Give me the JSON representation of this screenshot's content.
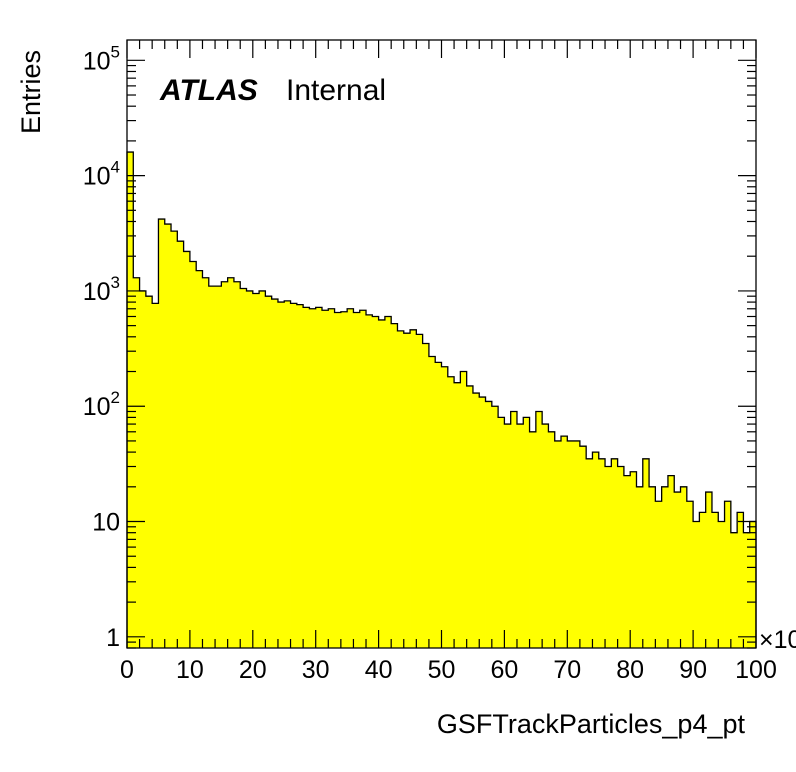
{
  "chart_data": {
    "type": "bar",
    "label": {
      "experiment": "ATLAS",
      "status": "Internal"
    },
    "xlabel": "GSFTrackParticles_p4_pt",
    "ylabel": "Entries",
    "x_multiplier_label": "×10",
    "xlim": [
      0,
      100
    ],
    "ylim": [
      0.8,
      150000
    ],
    "y_scale": "log",
    "x_ticks": [
      "0",
      "10",
      "20",
      "30",
      "40",
      "50",
      "60",
      "70",
      "80",
      "90",
      "100"
    ],
    "y_ticks": [
      {
        "value": 1,
        "base": "1",
        "exp": ""
      },
      {
        "value": 10,
        "base": "10",
        "exp": ""
      },
      {
        "value": 100,
        "base": "10",
        "exp": "2"
      },
      {
        "value": 1000,
        "base": "10",
        "exp": "3"
      },
      {
        "value": 10000,
        "base": "10",
        "exp": "4"
      },
      {
        "value": 100000,
        "base": "10",
        "exp": "5"
      }
    ],
    "bin_width": 1,
    "fill_color": "#ffff00",
    "line_color": "#000000",
    "values": [
      16000,
      1300,
      1000,
      900,
      780,
      4200,
      3800,
      3300,
      2700,
      2200,
      1800,
      1500,
      1300,
      1100,
      1100,
      1200,
      1300,
      1200,
      1050,
      1000,
      950,
      1000,
      900,
      850,
      800,
      820,
      780,
      760,
      720,
      700,
      720,
      680,
      700,
      650,
      660,
      700,
      650,
      680,
      620,
      600,
      560,
      600,
      520,
      450,
      430,
      460,
      420,
      350,
      270,
      240,
      220,
      180,
      160,
      200,
      150,
      130,
      120,
      110,
      100,
      80,
      70,
      90,
      70,
      80,
      60,
      90,
      70,
      60,
      50,
      55,
      50,
      50,
      45,
      35,
      40,
      35,
      30,
      35,
      30,
      25,
      27,
      20,
      35,
      20,
      15,
      20,
      25,
      18,
      20,
      15,
      10,
      12,
      18,
      12,
      10,
      15,
      8,
      12,
      8,
      10
    ]
  }
}
